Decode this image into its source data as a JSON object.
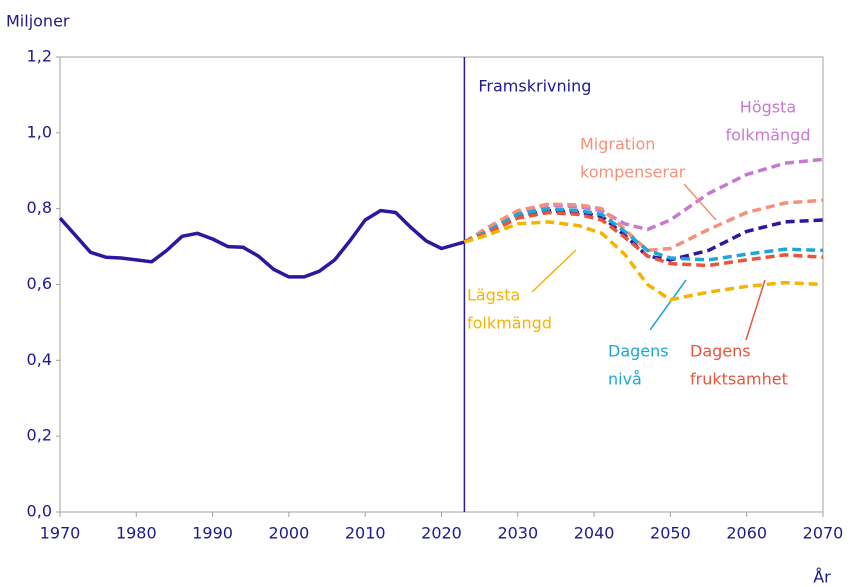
{
  "chart_data": {
    "type": "line",
    "y_label": "Miljoner",
    "x_label": "År",
    "annotation": {
      "text": "Framskrivning",
      "x": 2023
    },
    "xlim": [
      1970,
      2070
    ],
    "xticks": [
      1970,
      1980,
      1990,
      2000,
      2010,
      2020,
      2030,
      2040,
      2050,
      2060,
      2070
    ],
    "ylim": [
      0,
      1.2
    ],
    "yticks": [
      {
        "value": 0,
        "label": "0,0"
      },
      {
        "value": 0.2,
        "label": "0,2"
      },
      {
        "value": 0.4,
        "label": "0,4"
      },
      {
        "value": 0.6,
        "label": "0,6"
      },
      {
        "value": 0.8,
        "label": "0,8"
      },
      {
        "value": 1.0,
        "label": "1,0"
      },
      {
        "value": 1.2,
        "label": "1,2"
      }
    ],
    "x": [
      1970,
      1972,
      1974,
      1976,
      1978,
      1980,
      1982,
      1984,
      1986,
      1988,
      1990,
      1992,
      1994,
      1996,
      1998,
      2000,
      2002,
      2004,
      2006,
      2008,
      2010,
      2012,
      2014,
      2016,
      2018,
      2020,
      2023,
      2026,
      2030,
      2034,
      2038,
      2041,
      2044,
      2047,
      2050,
      2055,
      2060,
      2065,
      2070
    ],
    "series": [
      {
        "color": "#2c17a0",
        "values": [
          0.775,
          0.73,
          0.685,
          0.672,
          0.67,
          0.665,
          0.66,
          0.69,
          0.727,
          0.735,
          0.72,
          0.7,
          0.698,
          0.675,
          0.64,
          0.62,
          0.62,
          0.635,
          0.665,
          0.715,
          0.77,
          0.795,
          0.79,
          0.75,
          0.715,
          0.695,
          0.712,
          0.74,
          0.78,
          0.795,
          0.79,
          0.78,
          0.73,
          0.675,
          0.665,
          0.69,
          0.74,
          0.765,
          0.77
        ]
      },
      {
        "name": [
          "Högsta",
          "folkmängd"
        ],
        "color": "#c779d0",
        "values": [
          null,
          null,
          null,
          null,
          null,
          null,
          null,
          null,
          null,
          null,
          null,
          null,
          null,
          null,
          null,
          null,
          null,
          null,
          null,
          null,
          null,
          null,
          null,
          null,
          null,
          null,
          0.712,
          0.745,
          0.79,
          0.81,
          0.805,
          0.795,
          0.76,
          0.745,
          0.77,
          0.84,
          0.89,
          0.92,
          0.93
        ]
      },
      {
        "name": [
          "Migration",
          "kompenserar"
        ],
        "color": "#f4917a",
        "values": [
          null,
          null,
          null,
          null,
          null,
          null,
          null,
          null,
          null,
          null,
          null,
          null,
          null,
          null,
          null,
          null,
          null,
          null,
          null,
          null,
          null,
          null,
          null,
          null,
          null,
          null,
          0.712,
          0.75,
          0.795,
          0.812,
          0.81,
          0.8,
          0.745,
          0.69,
          0.695,
          0.745,
          0.79,
          0.815,
          0.822
        ]
      },
      {
        "name": [
          "Dagens",
          "nivå"
        ],
        "color": "#1ea6d6",
        "values": [
          null,
          null,
          null,
          null,
          null,
          null,
          null,
          null,
          null,
          null,
          null,
          null,
          null,
          null,
          null,
          null,
          null,
          null,
          null,
          null,
          null,
          null,
          null,
          null,
          null,
          null,
          0.712,
          0.74,
          0.785,
          0.8,
          0.795,
          0.785,
          0.74,
          0.69,
          0.67,
          0.665,
          0.68,
          0.693,
          0.69
        ]
      },
      {
        "name": [
          "Dagens",
          "fruktsamhet"
        ],
        "color": "#e8553a",
        "values": [
          null,
          null,
          null,
          null,
          null,
          null,
          null,
          null,
          null,
          null,
          null,
          null,
          null,
          null,
          null,
          null,
          null,
          null,
          null,
          null,
          null,
          null,
          null,
          null,
          null,
          null,
          0.712,
          0.735,
          0.775,
          0.79,
          0.785,
          0.77,
          0.725,
          0.675,
          0.655,
          0.65,
          0.665,
          0.678,
          0.672
        ]
      },
      {
        "name": [
          "Lägsta",
          "folkmängd"
        ],
        "color": "#f5b400",
        "values": [
          null,
          null,
          null,
          null,
          null,
          null,
          null,
          null,
          null,
          null,
          null,
          null,
          null,
          null,
          null,
          null,
          null,
          null,
          null,
          null,
          null,
          null,
          null,
          null,
          null,
          null,
          0.712,
          0.73,
          0.76,
          0.765,
          0.755,
          0.735,
          0.68,
          0.6,
          0.56,
          0.58,
          0.595,
          0.605,
          0.6
        ]
      }
    ]
  }
}
